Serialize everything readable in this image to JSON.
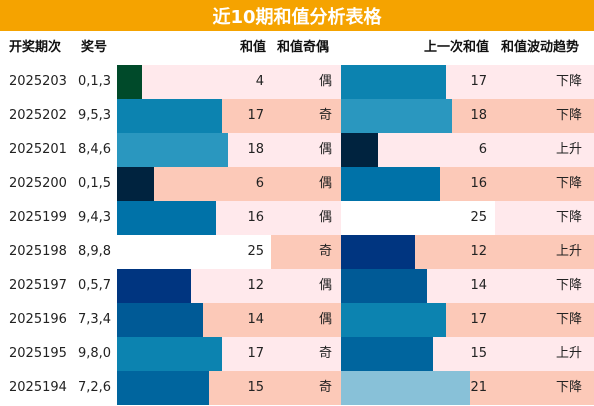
{
  "title": "近10期和值分析表格",
  "headers": {
    "period": "开奖期次",
    "numbers": "奖号",
    "sum": "和值",
    "parity": "和值奇偶",
    "prev_sum": "上一次和值",
    "trend": "和值波动趋势"
  },
  "colors": {
    "title_bg": "#f5a300",
    "row_light": "#ffe9ec",
    "row_dark": "#fcc9b8",
    "white": "#ffffff"
  },
  "max_sum": 25,
  "rows": [
    {
      "period": "2025203",
      "numbers": "0,1,3",
      "sum": 4,
      "parity": "偶",
      "prev_sum": 17,
      "trend": "下降",
      "sum_color": "#004a2a",
      "prev_color": "#0c83b0"
    },
    {
      "period": "2025202",
      "numbers": "9,5,3",
      "sum": 17,
      "parity": "奇",
      "prev_sum": 18,
      "trend": "下降",
      "sum_color": "#0c83b0",
      "prev_color": "#2a97bf"
    },
    {
      "period": "2025201",
      "numbers": "8,4,6",
      "sum": 18,
      "parity": "偶",
      "prev_sum": 6,
      "trend": "上升",
      "sum_color": "#2a97bf",
      "prev_color": "#00233f"
    },
    {
      "period": "2025200",
      "numbers": "0,1,5",
      "sum": 6,
      "parity": "偶",
      "prev_sum": 16,
      "trend": "下降",
      "sum_color": "#00233f",
      "prev_color": "#0072a8"
    },
    {
      "period": "2025199",
      "numbers": "9,4,3",
      "sum": 16,
      "parity": "偶",
      "prev_sum": 25,
      "trend": "下降",
      "sum_color": "#0072a8",
      "prev_color": "#ffffff"
    },
    {
      "period": "2025198",
      "numbers": "8,9,8",
      "sum": 25,
      "parity": "奇",
      "prev_sum": 12,
      "trend": "上升",
      "sum_color": "#ffffff",
      "prev_color": "#003580"
    },
    {
      "period": "2025197",
      "numbers": "0,5,7",
      "sum": 12,
      "parity": "偶",
      "prev_sum": 14,
      "trend": "下降",
      "sum_color": "#003580",
      "prev_color": "#005a96"
    },
    {
      "period": "2025196",
      "numbers": "7,3,4",
      "sum": 14,
      "parity": "偶",
      "prev_sum": 17,
      "trend": "下降",
      "sum_color": "#005a96",
      "prev_color": "#0c83b0"
    },
    {
      "period": "2025195",
      "numbers": "9,8,0",
      "sum": 17,
      "parity": "奇",
      "prev_sum": 15,
      "trend": "上升",
      "sum_color": "#0c83b0",
      "prev_color": "#00659e"
    },
    {
      "period": "2025194",
      "numbers": "7,2,6",
      "sum": 15,
      "parity": "奇",
      "prev_sum": 21,
      "trend": "下降",
      "sum_color": "#00659e",
      "prev_color": "#88c1d8"
    }
  ]
}
